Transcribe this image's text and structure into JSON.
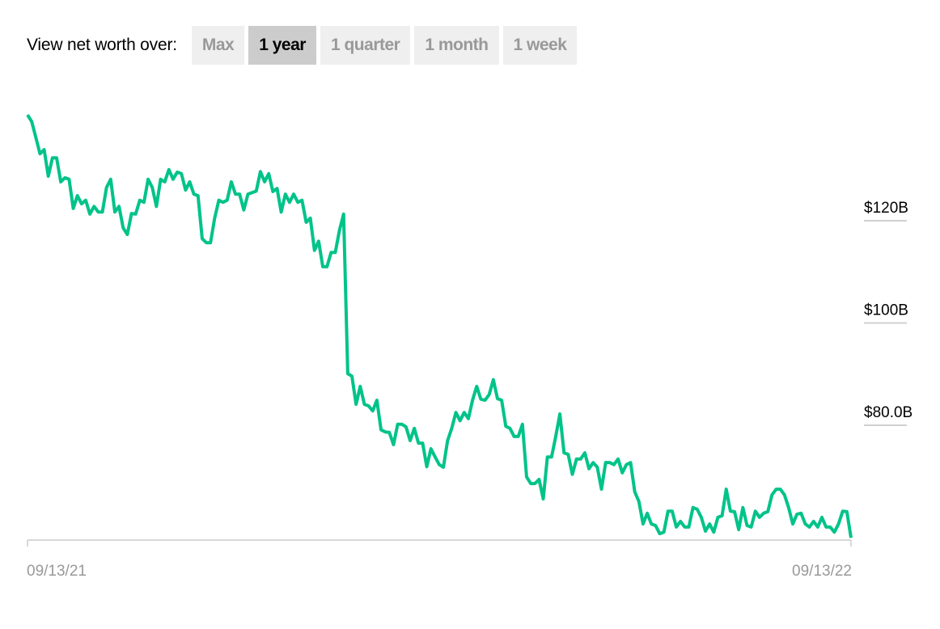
{
  "controls": {
    "label": "View net worth over:",
    "options": [
      {
        "label": "Max",
        "active": false
      },
      {
        "label": "1 year",
        "active": true
      },
      {
        "label": "1 quarter",
        "active": false
      },
      {
        "label": "1 month",
        "active": false
      },
      {
        "label": "1 week",
        "active": false
      }
    ]
  },
  "chart_data": {
    "type": "line",
    "title": "",
    "xlabel": "",
    "ylabel": "",
    "x_tick_labels": [
      "09/13/21",
      "09/13/22"
    ],
    "y_ticks": [
      {
        "value": 120,
        "label": "$120B"
      },
      {
        "value": 100,
        "label": "$100B"
      },
      {
        "value": 80,
        "label": "$80.0B"
      }
    ],
    "y_unit": "billions USD",
    "ylim": [
      58,
      141
    ],
    "grid": false,
    "line_color": "#00c389",
    "values": [
      140.7,
      139.4,
      136.3,
      133.1,
      133.9,
      128.7,
      132.3,
      132.3,
      127.6,
      128.4,
      128.1,
      122.4,
      124.9,
      123.3,
      124.0,
      121.3,
      122.8,
      121.7,
      121.7,
      126.5,
      128.1,
      121.7,
      122.8,
      118.6,
      117.3,
      121.4,
      121.3,
      124.0,
      123.6,
      128.1,
      126.5,
      122.8,
      128.1,
      127.6,
      130.0,
      128.1,
      129.5,
      129.2,
      126.0,
      127.6,
      125.2,
      124.9,
      116.5,
      115.7,
      115.7,
      120.5,
      124.0,
      123.6,
      124.0,
      127.6,
      125.2,
      125.2,
      122.1,
      125.2,
      125.5,
      125.8,
      129.6,
      127.6,
      129.2,
      125.7,
      126.3,
      121.7,
      125.2,
      123.6,
      125.2,
      123.6,
      124.0,
      119.7,
      120.5,
      114.2,
      116.0,
      111.0,
      111.0,
      113.8,
      113.8,
      118.1,
      121.3,
      90.1,
      89.6,
      84.1,
      87.6,
      84.1,
      83.8,
      82.8,
      84.9,
      79.1,
      78.7,
      78.6,
      76.2,
      80.2,
      80.2,
      79.7,
      77.0,
      79.4,
      76.5,
      76.5,
      71.9,
      75.4,
      73.8,
      72.3,
      71.8,
      77.0,
      79.4,
      82.5,
      80.9,
      82.5,
      81.3,
      84.9,
      87.6,
      85.1,
      84.9,
      86.0,
      88.9,
      85.2,
      84.9,
      79.8,
      79.4,
      77.8,
      77.8,
      80.2,
      69.9,
      68.6,
      68.6,
      69.4,
      65.6,
      73.8,
      73.8,
      77.8,
      82.2,
      74.6,
      74.3,
      70.4,
      73.4,
      73.4,
      74.6,
      71.5,
      72.7,
      71.8,
      67.5,
      72.7,
      72.7,
      72.3,
      73.4,
      70.7,
      72.3,
      72.7,
      67.0,
      65.1,
      60.7,
      62.8,
      60.7,
      60.4,
      58.8,
      59.1,
      63.2,
      63.2,
      60.1,
      61.2,
      60.1,
      60.1,
      63.9,
      63.6,
      62.0,
      59.3,
      60.7,
      59.1,
      62.0,
      62.3,
      67.5,
      63.2,
      63.1,
      59.6,
      63.9,
      60.4,
      60.1,
      63.2,
      62.0,
      62.8,
      63.1,
      66.4,
      67.5,
      67.5,
      66.4,
      63.9,
      60.7,
      62.6,
      62.8,
      60.7,
      60.1,
      61.2,
      60.1,
      62.0,
      60.1,
      60.1,
      59.1,
      60.7,
      63.2,
      63.1,
      58.0
    ]
  }
}
